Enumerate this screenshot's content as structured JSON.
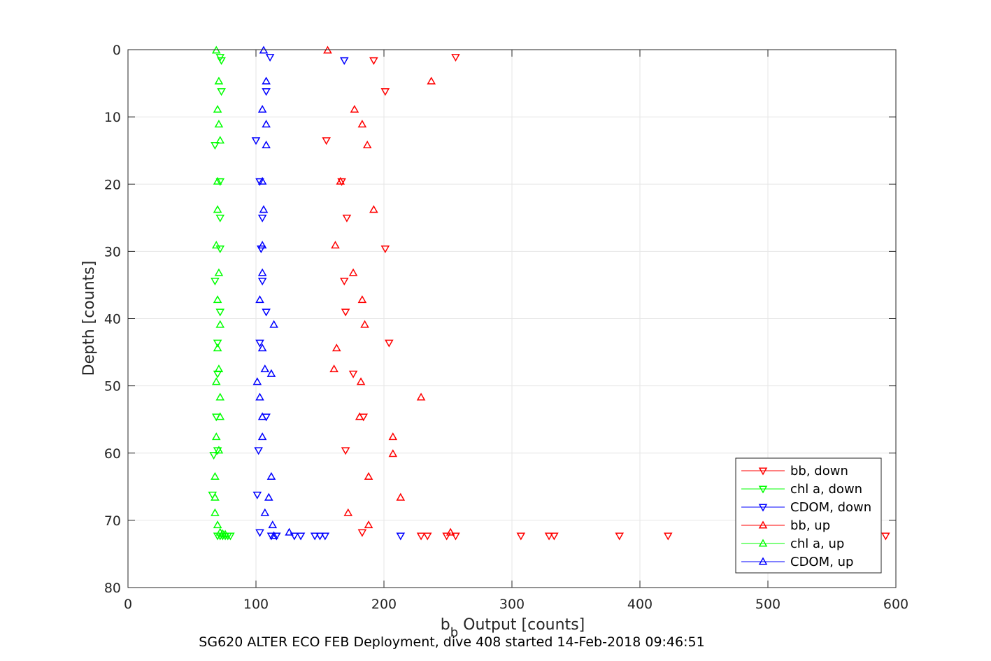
{
  "figure": {
    "footer_text": "SG620 ALTER ECO FEB Deployment, dive 408 started 14-Feb-2018 09:46:51"
  },
  "chart_data": {
    "type": "scatter",
    "title": "",
    "xlabel_main": "b",
    "xlabel_sub": "b",
    "xlabel_rest": " Output [counts]",
    "ylabel": "Depth [counts]",
    "xlim": [
      0,
      600
    ],
    "ylim": [
      0,
      80
    ],
    "y_reversed": true,
    "x_ticks": [
      0,
      100,
      200,
      300,
      400,
      500,
      600
    ],
    "y_ticks": [
      0,
      10,
      20,
      30,
      40,
      50,
      60,
      70,
      80
    ],
    "grid": true,
    "legend_position": "bottom-right",
    "series": [
      {
        "name": "bb, down",
        "color": "#ff0000",
        "marker": "triangle-down",
        "points": [
          [
            256,
            1.1
          ],
          [
            192,
            1.6
          ],
          [
            201,
            6.2
          ],
          [
            155,
            13.5
          ],
          [
            167,
            19.6
          ],
          [
            171,
            25.0
          ],
          [
            201,
            29.6
          ],
          [
            169,
            34.4
          ],
          [
            170,
            39.0
          ],
          [
            204,
            43.6
          ],
          [
            176,
            48.2
          ],
          [
            184,
            54.6
          ],
          [
            170,
            59.6
          ],
          [
            183,
            71.8
          ],
          [
            229,
            72.3
          ],
          [
            234,
            72.3
          ],
          [
            249,
            72.3
          ],
          [
            256,
            72.3
          ],
          [
            307,
            72.3
          ],
          [
            329,
            72.3
          ],
          [
            333,
            72.3
          ],
          [
            384,
            72.3
          ],
          [
            422,
            72.3
          ],
          [
            592,
            72.3
          ]
        ]
      },
      {
        "name": "chl a, down",
        "color": "#00ff00",
        "marker": "triangle-down",
        "points": [
          [
            72,
            1.1
          ],
          [
            73,
            1.6
          ],
          [
            73,
            6.2
          ],
          [
            68,
            14.2
          ],
          [
            72,
            19.6
          ],
          [
            72,
            25.0
          ],
          [
            72,
            29.6
          ],
          [
            68,
            34.4
          ],
          [
            72,
            39.0
          ],
          [
            70,
            43.6
          ],
          [
            70,
            48.2
          ],
          [
            69,
            54.6
          ],
          [
            70,
            59.6
          ],
          [
            67,
            60.3
          ],
          [
            66,
            66.2
          ],
          [
            70,
            72.3
          ],
          [
            72,
            72.3
          ],
          [
            74,
            72.3
          ],
          [
            76,
            72.3
          ],
          [
            78,
            72.3
          ],
          [
            80,
            72.3
          ]
        ]
      },
      {
        "name": "CDOM, down",
        "color": "#0000ff",
        "marker": "triangle-down",
        "points": [
          [
            111,
            1.1
          ],
          [
            169,
            1.6
          ],
          [
            108,
            6.2
          ],
          [
            100,
            13.5
          ],
          [
            103,
            19.6
          ],
          [
            105,
            25.0
          ],
          [
            104,
            29.6
          ],
          [
            105,
            34.4
          ],
          [
            108,
            39.0
          ],
          [
            103,
            43.6
          ],
          [
            108,
            54.6
          ],
          [
            102,
            59.6
          ],
          [
            101,
            66.2
          ],
          [
            103,
            71.8
          ],
          [
            112,
            72.3
          ],
          [
            116,
            72.3
          ],
          [
            130,
            72.3
          ],
          [
            135,
            72.3
          ],
          [
            146,
            72.3
          ],
          [
            150,
            72.3
          ],
          [
            154,
            72.3
          ],
          [
            213,
            72.3
          ]
        ]
      },
      {
        "name": "bb, up",
        "color": "#ff0000",
        "marker": "triangle-up",
        "points": [
          [
            156,
            0.1
          ],
          [
            237,
            4.7
          ],
          [
            177,
            8.9
          ],
          [
            183,
            11.1
          ],
          [
            187,
            14.2
          ],
          [
            166,
            19.6
          ],
          [
            192,
            23.8
          ],
          [
            162,
            29.1
          ],
          [
            176,
            33.2
          ],
          [
            183,
            37.2
          ],
          [
            185,
            40.9
          ],
          [
            163,
            44.4
          ],
          [
            161,
            47.5
          ],
          [
            182,
            49.4
          ],
          [
            229,
            51.7
          ],
          [
            181,
            54.6
          ],
          [
            207,
            57.6
          ],
          [
            207,
            60.1
          ],
          [
            188,
            63.5
          ],
          [
            213,
            66.6
          ],
          [
            172,
            68.9
          ],
          [
            188,
            70.7
          ],
          [
            252,
            71.8
          ]
        ]
      },
      {
        "name": "chl a, up",
        "color": "#00ff00",
        "marker": "triangle-up",
        "points": [
          [
            69,
            0.1
          ],
          [
            71,
            4.7
          ],
          [
            70,
            8.9
          ],
          [
            71,
            11.1
          ],
          [
            72,
            13.5
          ],
          [
            70,
            19.6
          ],
          [
            70,
            23.8
          ],
          [
            69,
            29.1
          ],
          [
            71,
            33.2
          ],
          [
            70,
            37.2
          ],
          [
            72,
            40.9
          ],
          [
            70,
            44.4
          ],
          [
            71,
            47.5
          ],
          [
            69,
            49.4
          ],
          [
            72,
            51.7
          ],
          [
            72,
            54.6
          ],
          [
            69,
            57.6
          ],
          [
            71,
            59.6
          ],
          [
            68,
            63.5
          ],
          [
            68,
            66.6
          ],
          [
            68,
            68.9
          ],
          [
            70,
            70.7
          ],
          [
            72,
            71.8
          ],
          [
            74,
            72.0
          ],
          [
            76,
            72.1
          ]
        ]
      },
      {
        "name": "CDOM, up",
        "color": "#0000ff",
        "marker": "triangle-up",
        "points": [
          [
            106,
            0.1
          ],
          [
            108,
            4.7
          ],
          [
            105,
            8.9
          ],
          [
            108,
            11.1
          ],
          [
            108,
            14.2
          ],
          [
            105,
            19.6
          ],
          [
            106,
            23.8
          ],
          [
            105,
            29.1
          ],
          [
            105,
            33.2
          ],
          [
            103,
            37.2
          ],
          [
            114,
            40.9
          ],
          [
            105,
            44.4
          ],
          [
            107,
            47.5
          ],
          [
            112,
            48.2
          ],
          [
            101,
            49.4
          ],
          [
            103,
            51.7
          ],
          [
            105,
            54.6
          ],
          [
            105,
            57.6
          ],
          [
            112,
            63.5
          ],
          [
            110,
            66.6
          ],
          [
            107,
            68.9
          ],
          [
            113,
            70.7
          ],
          [
            126,
            71.8
          ],
          [
            114,
            72.3
          ]
        ]
      }
    ]
  }
}
